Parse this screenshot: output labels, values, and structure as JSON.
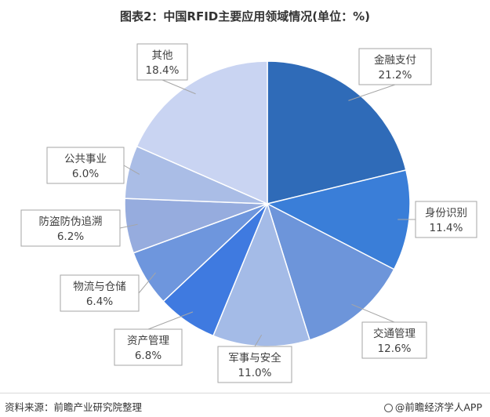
{
  "page": {
    "title": "图表2：中国RFID主要应用领域情况(单位：%)",
    "source": "资料来源：前瞻产业研究院整理",
    "brand": "@前瞻经济学人APP"
  },
  "chart_data": {
    "type": "pie",
    "title": "图表2：中国RFID主要应用领域情况(单位：%)",
    "unit": "%",
    "labels": [
      "金融支付",
      "身份识别",
      "交通管理",
      "军事与安全",
      "资产管理",
      "物流与仓储",
      "防盗防伪追溯",
      "公共事业",
      "其他"
    ],
    "values": [
      21.2,
      11.4,
      12.6,
      11.0,
      6.8,
      6.4,
      6.2,
      6.0,
      18.4
    ],
    "value_labels": [
      "21.2%",
      "11.4%",
      "12.6%",
      "11.0%",
      "6.8%",
      "6.4%",
      "6.2%",
      "6.0%",
      "18.4%"
    ],
    "colors": [
      "#2f6bb8",
      "#3a7ed8",
      "#6d95da",
      "#a4bbe7",
      "#3f7ae0",
      "#6e96dd",
      "#96acde",
      "#aabde6",
      "#c9d4f2"
    ],
    "start_angle_deg": 0,
    "direction": "clockwise",
    "legend": "none"
  }
}
